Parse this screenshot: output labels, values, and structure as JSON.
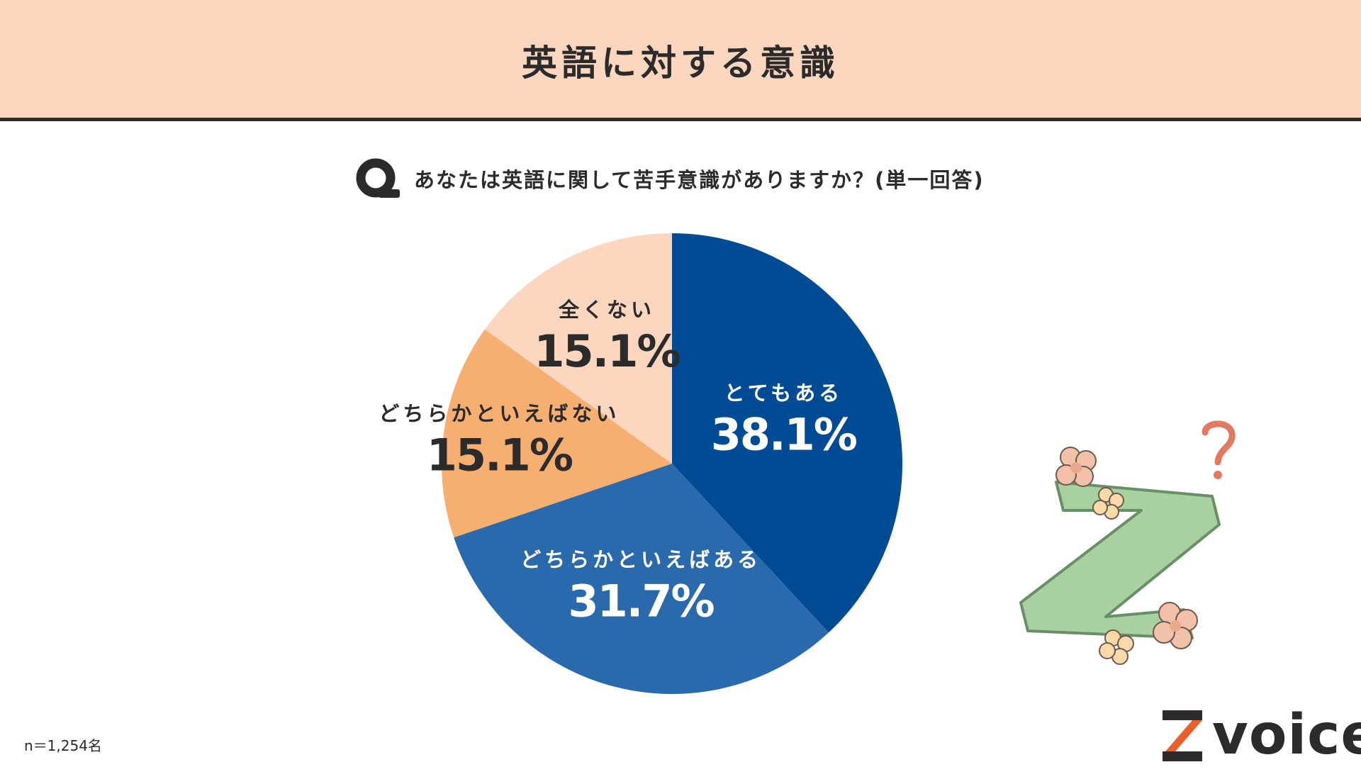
{
  "header": {
    "title": "英語に対する意識"
  },
  "question": {
    "text": "あなたは英語に関して苦手意識がありますか？(単一回答)"
  },
  "footnote": "n＝1,254名",
  "logo": {
    "text": "voice"
  },
  "chart_data": {
    "type": "pie",
    "title": "",
    "start_angle_deg": 0,
    "direction": "clockwise",
    "slices": [
      {
        "label": "とてもある",
        "value": 38.1,
        "display": "38.1%",
        "color": "#004b93",
        "text_color": "#ffffff"
      },
      {
        "label": "どちらかといえばある",
        "value": 31.7,
        "display": "31.7%",
        "color": "#2a6aac",
        "text_color": "#ffffff"
      },
      {
        "label": "どちらかといえばない",
        "value": 15.1,
        "display": "15.1%",
        "color": "#f6ae71",
        "text_color": "#2b2b2b"
      },
      {
        "label": "全くない",
        "value": 15.1,
        "display": "15.1%",
        "color": "#fdd6bf",
        "text_color": "#2b2b2b"
      }
    ]
  },
  "colors": {
    "header_bg": "#fdd6bf",
    "dark": "#2b2b2b",
    "logo_accent": "#e8612c"
  }
}
